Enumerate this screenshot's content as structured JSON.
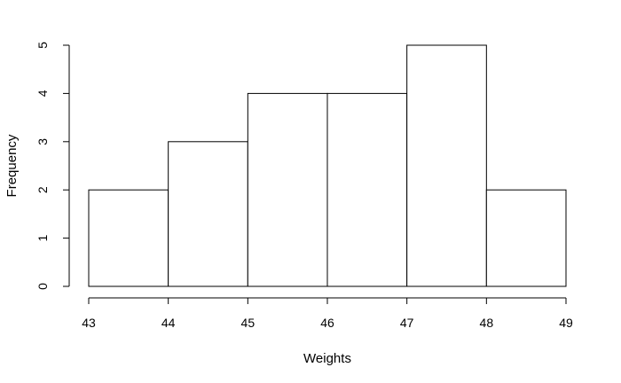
{
  "chart_data": {
    "type": "bar",
    "subtype": "histogram",
    "bins": [
      {
        "start": 43,
        "end": 44,
        "count": 2
      },
      {
        "start": 44,
        "end": 45,
        "count": 3
      },
      {
        "start": 45,
        "end": 46,
        "count": 4
      },
      {
        "start": 46,
        "end": 47,
        "count": 4
      },
      {
        "start": 47,
        "end": 48,
        "count": 5
      },
      {
        "start": 48,
        "end": 49,
        "count": 2
      }
    ],
    "xlabel": "Weights",
    "ylabel": "Frequency",
    "xlim": [
      43,
      49
    ],
    "ylim": [
      0,
      5
    ],
    "xticks": [
      43,
      44,
      45,
      46,
      47,
      48,
      49
    ],
    "yticks": [
      0,
      1,
      2,
      3,
      4,
      5
    ],
    "grid": false,
    "colors": {
      "bar_fill": "#ffffff",
      "bar_stroke": "#000000",
      "axis": "#000000"
    }
  }
}
